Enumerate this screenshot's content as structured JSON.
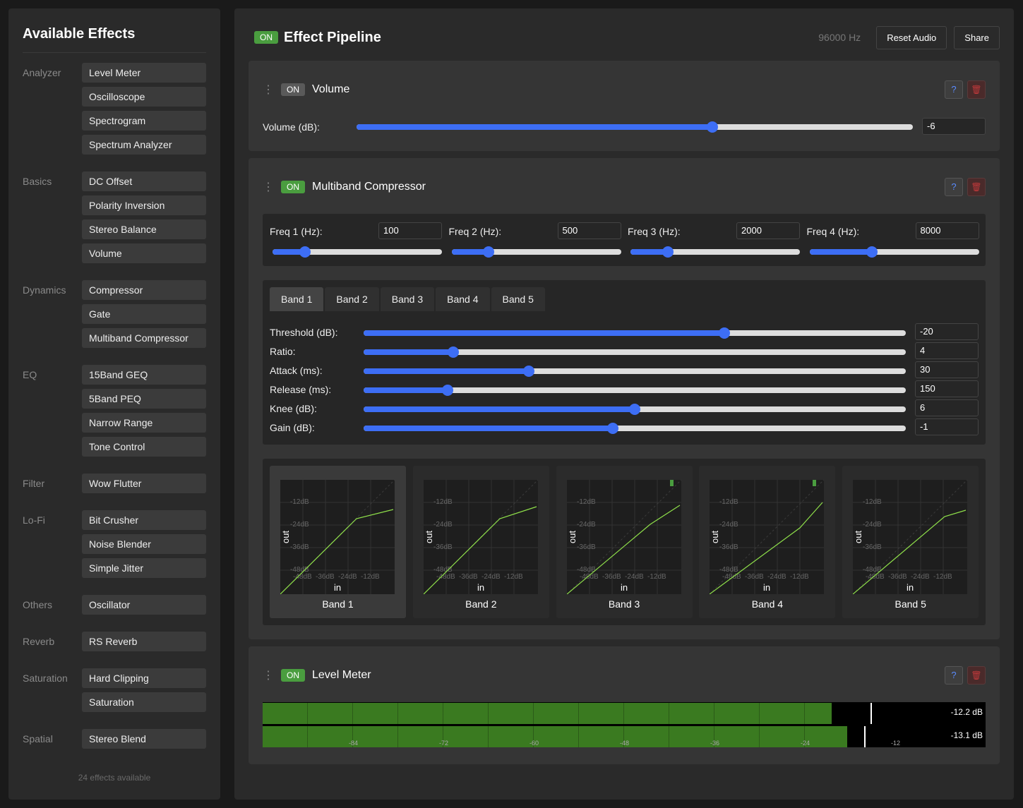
{
  "sidebar": {
    "title": "Available Effects",
    "categories": [
      {
        "name": "Analyzer",
        "items": [
          "Level Meter",
          "Oscilloscope",
          "Spectrogram",
          "Spectrum Analyzer"
        ]
      },
      {
        "name": "Basics",
        "items": [
          "DC Offset",
          "Polarity Inversion",
          "Stereo Balance",
          "Volume"
        ]
      },
      {
        "name": "Dynamics",
        "items": [
          "Compressor",
          "Gate",
          "Multiband Compressor"
        ]
      },
      {
        "name": "EQ",
        "items": [
          "15Band GEQ",
          "5Band PEQ",
          "Narrow Range",
          "Tone Control"
        ]
      },
      {
        "name": "Filter",
        "items": [
          "Wow Flutter"
        ]
      },
      {
        "name": "Lo-Fi",
        "items": [
          "Bit Crusher",
          "Noise Blender",
          "Simple Jitter"
        ]
      },
      {
        "name": "Others",
        "items": [
          "Oscillator"
        ]
      },
      {
        "name": "Reverb",
        "items": [
          "RS Reverb"
        ]
      },
      {
        "name": "Saturation",
        "items": [
          "Hard Clipping",
          "Saturation"
        ]
      },
      {
        "name": "Spatial",
        "items": [
          "Stereo Blend"
        ]
      }
    ],
    "footer": "24 effects available"
  },
  "header": {
    "on_label": "ON",
    "title": "Effect Pipeline",
    "sample_rate": "96000 Hz",
    "reset_label": "Reset Audio",
    "share_label": "Share"
  },
  "common": {
    "help": "?",
    "delete_icon": "trash-icon",
    "grip": "⋮"
  },
  "volume_card": {
    "state": "ON",
    "title": "Volume",
    "param_label": "Volume (dB):",
    "value": "-6",
    "slider_fraction": 0.64
  },
  "mbc_card": {
    "state": "ON",
    "title": "Multiband Compressor",
    "freqs": [
      {
        "label": "Freq 1 (Hz):",
        "value": "100",
        "slider_fraction": 0.19
      },
      {
        "label": "Freq 2 (Hz):",
        "value": "500",
        "slider_fraction": 0.22
      },
      {
        "label": "Freq 3 (Hz):",
        "value": "2000",
        "slider_fraction": 0.22
      },
      {
        "label": "Freq 4 (Hz):",
        "value": "8000",
        "slider_fraction": 0.37
      }
    ],
    "tabs": [
      "Band 1",
      "Band 2",
      "Band 3",
      "Band 4",
      "Band 5"
    ],
    "active_tab": 0,
    "params": [
      {
        "label": "Threshold (dB):",
        "value": "-20",
        "slider_fraction": 0.665
      },
      {
        "label": "Ratio:",
        "value": "4",
        "slider_fraction": 0.165
      },
      {
        "label": "Attack (ms):",
        "value": "30",
        "slider_fraction": 0.305
      },
      {
        "label": "Release (ms):",
        "value": "150",
        "slider_fraction": 0.155
      },
      {
        "label": "Knee (dB):",
        "value": "6",
        "slider_fraction": 0.5
      },
      {
        "label": "Gain (dB):",
        "value": "-1",
        "slider_fraction": 0.46
      }
    ],
    "graphs": {
      "y_ticks": [
        "-12dB",
        "-24dB",
        "-36dB",
        "-48dB"
      ],
      "x_ticks": [
        "-48dB",
        "-36dB",
        "-24dB",
        "-12dB"
      ],
      "x_label": "in",
      "y_label": "out",
      "bands": [
        "Band 1",
        "Band 2",
        "Band 3",
        "Band 4",
        "Band 5"
      ]
    }
  },
  "level_card": {
    "state": "ON",
    "title": "Level Meter",
    "channels": [
      {
        "readout": "-12.2 dB",
        "level_fraction": 0.84,
        "peak_fraction": 0.897
      },
      {
        "readout": "-13.1 dB",
        "level_fraction": 0.862,
        "peak_fraction": 0.887
      }
    ],
    "scale": [
      "-84",
      "-72",
      "-60",
      "-48",
      "-36",
      "-24",
      "-12"
    ]
  },
  "colors": {
    "accent": "#3d6ef5",
    "on_badge": "#4a9d3f",
    "meter": "#3a7a20",
    "curve": "#8fe04a"
  }
}
